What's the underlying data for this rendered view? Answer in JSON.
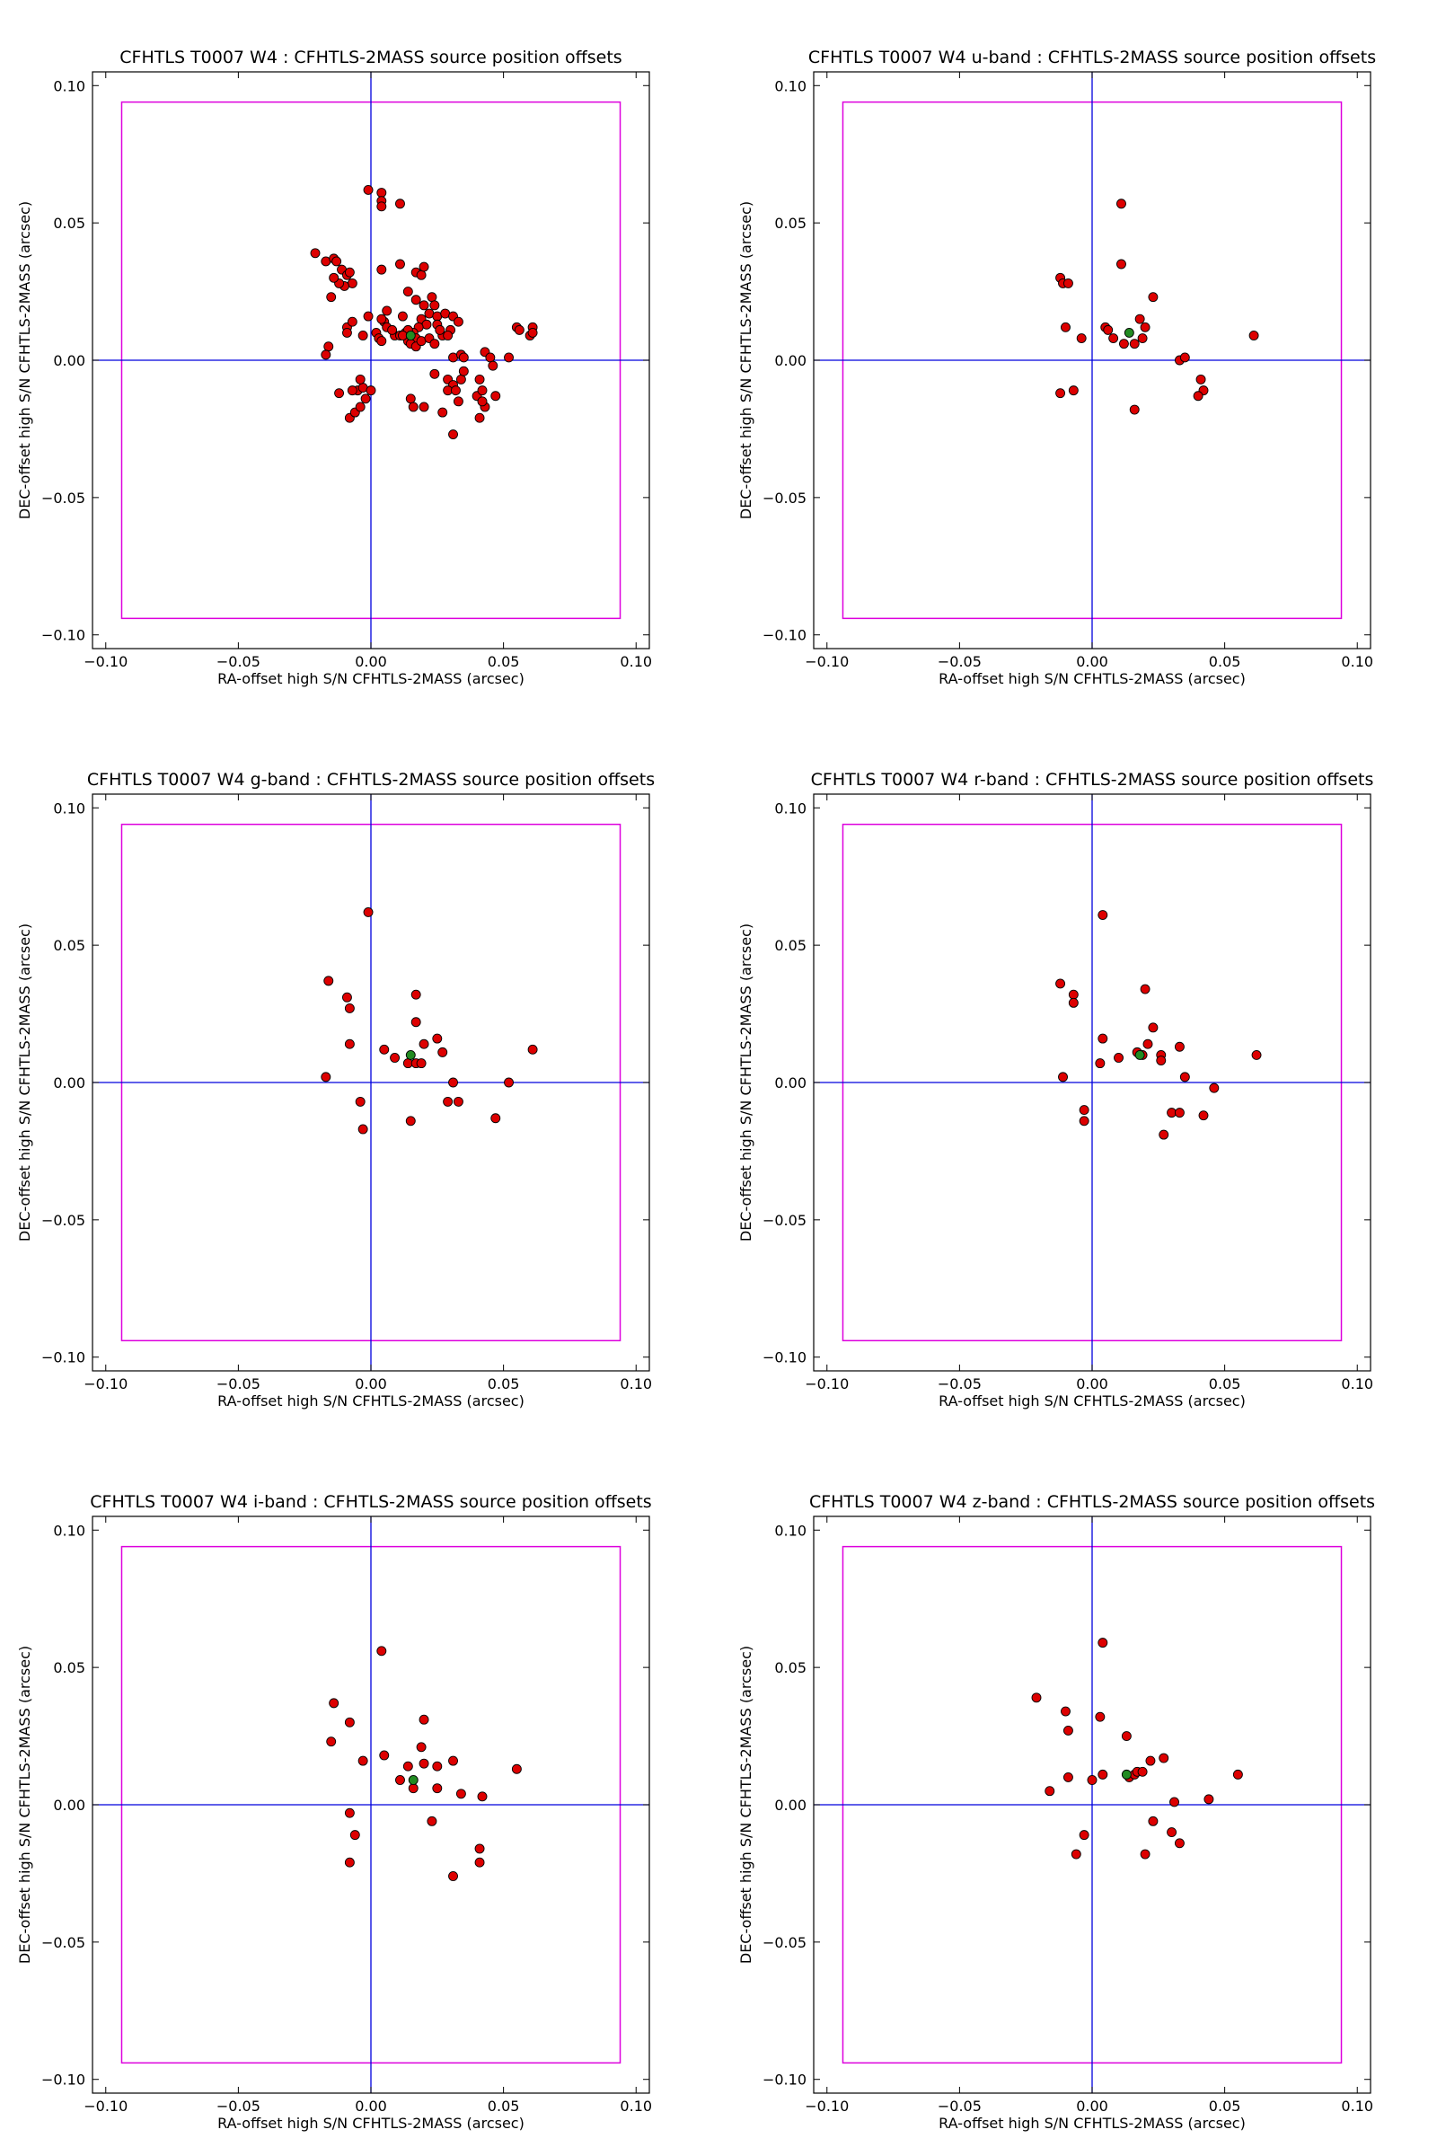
{
  "figure": {
    "background_color": "#ffffff",
    "styles": {
      "point_fill": "#dd0000",
      "point_stroke": "#000000",
      "mean_point_fill": "#228b22",
      "crosshair_color": "#0000dd",
      "box_color": "#dd00dd",
      "frame_color": "#000000"
    }
  },
  "chart_data": [
    {
      "type": "scatter",
      "title": "CFHTLS T0007 W4 : CFHTLS-2MASS source position offsets",
      "xlabel": "RA-offset high S/N CFHTLS-2MASS (arcsec)",
      "ylabel": "DEC-offset high S/N CFHTLS-2MASS (arcsec)",
      "xlim": [
        -0.105,
        0.105
      ],
      "ylim": [
        -0.105,
        0.105
      ],
      "xticks": [
        -0.1,
        -0.05,
        0.0,
        0.05,
        0.1
      ],
      "yticks": [
        -0.1,
        -0.05,
        0.0,
        0.05,
        0.1
      ],
      "xtick_labels": [
        "−0.10",
        "−0.05",
        "0.00",
        "0.05",
        "0.10"
      ],
      "ytick_labels": [
        "−0.10",
        "−0.05",
        "0.00",
        "0.05",
        "0.10"
      ],
      "box_limits": [
        -0.094,
        0.094
      ],
      "crosshair": [
        0,
        0
      ],
      "grid": false,
      "points": [
        [
          -0.021,
          0.039
        ],
        [
          -0.017,
          0.036
        ],
        [
          -0.014,
          0.037
        ],
        [
          -0.013,
          0.036
        ],
        [
          -0.011,
          0.033
        ],
        [
          -0.009,
          0.031
        ],
        [
          -0.008,
          0.032
        ],
        [
          -0.007,
          0.028
        ],
        [
          -0.01,
          0.027
        ],
        [
          -0.012,
          0.028
        ],
        [
          -0.014,
          0.03
        ],
        [
          -0.015,
          0.023
        ],
        [
          -0.009,
          0.012
        ],
        [
          -0.007,
          0.014
        ],
        [
          -0.009,
          0.01
        ],
        [
          -0.003,
          0.009
        ],
        [
          -0.001,
          0.016
        ],
        [
          -0.016,
          0.005
        ],
        [
          -0.017,
          0.002
        ],
        [
          -0.012,
          -0.012
        ],
        [
          -0.008,
          -0.021
        ],
        [
          -0.006,
          -0.019
        ],
        [
          -0.004,
          -0.017
        ],
        [
          -0.005,
          -0.011
        ],
        [
          -0.003,
          -0.01
        ],
        [
          -0.007,
          -0.011
        ],
        [
          -0.004,
          -0.007
        ],
        [
          -0.002,
          -0.014
        ],
        [
          0.0,
          -0.011
        ],
        [
          -0.001,
          0.062
        ],
        [
          0.004,
          0.061
        ],
        [
          0.004,
          0.058
        ],
        [
          0.004,
          0.056
        ],
        [
          0.011,
          0.057
        ],
        [
          0.004,
          0.033
        ],
        [
          0.011,
          0.035
        ],
        [
          0.002,
          0.01
        ],
        [
          0.003,
          0.008
        ],
        [
          0.006,
          0.018
        ],
        [
          0.005,
          0.014
        ],
        [
          0.006,
          0.012
        ],
        [
          0.009,
          0.009
        ],
        [
          0.011,
          0.009
        ],
        [
          0.013,
          0.01
        ],
        [
          0.014,
          0.025
        ],
        [
          0.017,
          0.032
        ],
        [
          0.019,
          0.031
        ],
        [
          0.02,
          0.034
        ],
        [
          0.017,
          0.022
        ],
        [
          0.02,
          0.02
        ],
        [
          0.023,
          0.023
        ],
        [
          0.024,
          0.02
        ],
        [
          0.022,
          0.017
        ],
        [
          0.025,
          0.016
        ],
        [
          0.028,
          0.017
        ],
        [
          0.025,
          0.013
        ],
        [
          0.019,
          0.015
        ],
        [
          0.021,
          0.013
        ],
        [
          0.018,
          0.012
        ],
        [
          0.016,
          0.01
        ],
        [
          0.017,
          0.008
        ],
        [
          0.014,
          0.007
        ],
        [
          0.015,
          0.006
        ],
        [
          0.017,
          0.005
        ],
        [
          0.019,
          0.007
        ],
        [
          0.022,
          0.008
        ],
        [
          0.024,
          0.006
        ],
        [
          0.027,
          0.009
        ],
        [
          0.026,
          0.011
        ],
        [
          0.031,
          0.016
        ],
        [
          0.033,
          0.014
        ],
        [
          0.03,
          0.011
        ],
        [
          0.029,
          0.009
        ],
        [
          0.024,
          -0.005
        ],
        [
          0.027,
          -0.019
        ],
        [
          0.029,
          -0.007
        ],
        [
          0.031,
          -0.009
        ],
        [
          0.029,
          -0.011
        ],
        [
          0.032,
          -0.011
        ],
        [
          0.034,
          -0.007
        ],
        [
          0.035,
          -0.004
        ],
        [
          0.031,
          0.001
        ],
        [
          0.034,
          0.002
        ],
        [
          0.035,
          0.001
        ],
        [
          0.033,
          -0.015
        ],
        [
          0.031,
          -0.027
        ],
        [
          0.041,
          -0.007
        ],
        [
          0.04,
          -0.013
        ],
        [
          0.042,
          -0.011
        ],
        [
          0.041,
          -0.021
        ],
        [
          0.043,
          -0.017
        ],
        [
          0.043,
          0.003
        ],
        [
          0.045,
          0.001
        ],
        [
          0.046,
          -0.002
        ],
        [
          0.047,
          -0.013
        ],
        [
          0.042,
          -0.015
        ],
        [
          0.052,
          0.001
        ],
        [
          0.055,
          0.012
        ],
        [
          0.056,
          0.011
        ],
        [
          0.061,
          0.012
        ],
        [
          0.06,
          0.009
        ],
        [
          0.061,
          0.01
        ],
        [
          0.015,
          -0.014
        ],
        [
          0.016,
          -0.017
        ],
        [
          0.02,
          -0.017
        ],
        [
          0.014,
          0.011
        ],
        [
          0.012,
          0.009
        ],
        [
          0.008,
          0.011
        ],
        [
          0.004,
          0.007
        ],
        [
          0.012,
          0.016
        ],
        [
          0.004,
          0.015
        ]
      ],
      "mean_point": [
        0.015,
        0.009
      ]
    },
    {
      "type": "scatter",
      "title": "CFHTLS T0007 W4 u-band : CFHTLS-2MASS source position offsets",
      "xlabel": "RA-offset high S/N CFHTLS-2MASS (arcsec)",
      "ylabel": "DEC-offset high S/N CFHTLS-2MASS (arcsec)",
      "xlim": [
        -0.105,
        0.105
      ],
      "ylim": [
        -0.105,
        0.105
      ],
      "xticks": [
        -0.1,
        -0.05,
        0.0,
        0.05,
        0.1
      ],
      "yticks": [
        -0.1,
        -0.05,
        0.0,
        0.05,
        0.1
      ],
      "xtick_labels": [
        "−0.10",
        "−0.05",
        "0.00",
        "0.05",
        "0.10"
      ],
      "ytick_labels": [
        "−0.10",
        "−0.05",
        "0.00",
        "0.05",
        "0.10"
      ],
      "box_limits": [
        -0.094,
        0.094
      ],
      "crosshair": [
        0,
        0
      ],
      "grid": false,
      "points": [
        [
          -0.012,
          0.03
        ],
        [
          -0.011,
          0.028
        ],
        [
          -0.009,
          0.028
        ],
        [
          -0.01,
          0.012
        ],
        [
          -0.004,
          0.008
        ],
        [
          -0.012,
          -0.012
        ],
        [
          -0.007,
          -0.011
        ],
        [
          0.011,
          0.057
        ],
        [
          0.011,
          0.035
        ],
        [
          0.005,
          0.012
        ],
        [
          0.006,
          0.011
        ],
        [
          0.008,
          0.008
        ],
        [
          0.012,
          0.006
        ],
        [
          0.016,
          0.006
        ],
        [
          0.018,
          0.015
        ],
        [
          0.019,
          0.008
        ],
        [
          0.02,
          0.012
        ],
        [
          0.023,
          0.023
        ],
        [
          0.016,
          -0.018
        ],
        [
          0.033,
          0.0
        ],
        [
          0.035,
          0.001
        ],
        [
          0.041,
          -0.007
        ],
        [
          0.042,
          -0.011
        ],
        [
          0.04,
          -0.013
        ],
        [
          0.061,
          0.009
        ]
      ],
      "mean_point": [
        0.014,
        0.01
      ]
    },
    {
      "type": "scatter",
      "title": "CFHTLS T0007 W4 g-band : CFHTLS-2MASS source position offsets",
      "xlabel": "RA-offset high S/N CFHTLS-2MASS (arcsec)",
      "ylabel": "DEC-offset high S/N CFHTLS-2MASS (arcsec)",
      "xlim": [
        -0.105,
        0.105
      ],
      "ylim": [
        -0.105,
        0.105
      ],
      "xticks": [
        -0.1,
        -0.05,
        0.0,
        0.05,
        0.1
      ],
      "yticks": [
        -0.1,
        -0.05,
        0.0,
        0.05,
        0.1
      ],
      "xtick_labels": [
        "−0.10",
        "−0.05",
        "0.00",
        "0.05",
        "0.10"
      ],
      "ytick_labels": [
        "−0.10",
        "−0.05",
        "0.00",
        "0.05",
        "0.10"
      ],
      "box_limits": [
        -0.094,
        0.094
      ],
      "crosshair": [
        0,
        0
      ],
      "grid": false,
      "points": [
        [
          -0.001,
          0.062
        ],
        [
          -0.016,
          0.037
        ],
        [
          -0.009,
          0.031
        ],
        [
          -0.008,
          0.027
        ],
        [
          -0.008,
          0.014
        ],
        [
          -0.017,
          0.002
        ],
        [
          -0.004,
          -0.007
        ],
        [
          -0.003,
          -0.017
        ],
        [
          0.017,
          0.032
        ],
        [
          0.017,
          0.022
        ],
        [
          0.025,
          0.016
        ],
        [
          0.02,
          0.014
        ],
        [
          0.027,
          0.011
        ],
        [
          0.005,
          0.012
        ],
        [
          0.009,
          0.009
        ],
        [
          0.014,
          0.007
        ],
        [
          0.017,
          0.007
        ],
        [
          0.019,
          0.007
        ],
        [
          0.031,
          0.0
        ],
        [
          0.029,
          -0.007
        ],
        [
          0.033,
          -0.007
        ],
        [
          0.015,
          -0.014
        ],
        [
          0.047,
          -0.013
        ],
        [
          0.052,
          0.0
        ],
        [
          0.061,
          0.012
        ]
      ],
      "mean_point": [
        0.015,
        0.01
      ]
    },
    {
      "type": "scatter",
      "title": "CFHTLS T0007 W4 r-band : CFHTLS-2MASS source position offsets",
      "xlabel": "RA-offset high S/N CFHTLS-2MASS (arcsec)",
      "ylabel": "DEC-offset high S/N CFHTLS-2MASS (arcsec)",
      "xlim": [
        -0.105,
        0.105
      ],
      "ylim": [
        -0.105,
        0.105
      ],
      "xticks": [
        -0.1,
        -0.05,
        0.0,
        0.05,
        0.1
      ],
      "yticks": [
        -0.1,
        -0.05,
        0.0,
        0.05,
        0.1
      ],
      "xtick_labels": [
        "−0.10",
        "−0.05",
        "0.00",
        "0.05",
        "0.10"
      ],
      "ytick_labels": [
        "−0.10",
        "−0.05",
        "0.00",
        "0.05",
        "0.10"
      ],
      "box_limits": [
        -0.094,
        0.094
      ],
      "crosshair": [
        0,
        0
      ],
      "grid": false,
      "points": [
        [
          0.004,
          0.061
        ],
        [
          -0.012,
          0.036
        ],
        [
          -0.007,
          0.032
        ],
        [
          -0.007,
          0.029
        ],
        [
          0.004,
          0.016
        ],
        [
          0.003,
          0.007
        ],
        [
          0.01,
          0.009
        ],
        [
          -0.011,
          0.002
        ],
        [
          -0.003,
          -0.01
        ],
        [
          -0.003,
          -0.014
        ],
        [
          0.02,
          0.034
        ],
        [
          0.023,
          0.02
        ],
        [
          0.021,
          0.014
        ],
        [
          0.017,
          0.011
        ],
        [
          0.019,
          0.01
        ],
        [
          0.026,
          0.01
        ],
        [
          0.026,
          0.008
        ],
        [
          0.033,
          0.013
        ],
        [
          0.035,
          0.002
        ],
        [
          0.03,
          -0.011
        ],
        [
          0.033,
          -0.011
        ],
        [
          0.027,
          -0.019
        ],
        [
          0.042,
          -0.012
        ],
        [
          0.046,
          -0.002
        ],
        [
          0.062,
          0.01
        ]
      ],
      "mean_point": [
        0.018,
        0.01
      ]
    },
    {
      "type": "scatter",
      "title": "CFHTLS T0007 W4 i-band : CFHTLS-2MASS source position offsets",
      "xlabel": "RA-offset high S/N CFHTLS-2MASS (arcsec)",
      "ylabel": "DEC-offset high S/N CFHTLS-2MASS (arcsec)",
      "xlim": [
        -0.105,
        0.105
      ],
      "ylim": [
        -0.105,
        0.105
      ],
      "xticks": [
        -0.1,
        -0.05,
        0.0,
        0.05,
        0.1
      ],
      "yticks": [
        -0.1,
        -0.05,
        0.0,
        0.05,
        0.1
      ],
      "xtick_labels": [
        "−0.10",
        "−0.05",
        "0.00",
        "0.05",
        "0.10"
      ],
      "ytick_labels": [
        "−0.10",
        "−0.05",
        "0.00",
        "0.05",
        "0.10"
      ],
      "box_limits": [
        -0.094,
        0.094
      ],
      "crosshair": [
        0,
        0
      ],
      "grid": false,
      "points": [
        [
          0.004,
          0.056
        ],
        [
          -0.014,
          0.037
        ],
        [
          -0.008,
          0.03
        ],
        [
          -0.015,
          0.023
        ],
        [
          -0.003,
          0.016
        ],
        [
          0.005,
          0.018
        ],
        [
          0.011,
          0.009
        ],
        [
          0.014,
          0.014
        ],
        [
          0.016,
          0.006
        ],
        [
          0.019,
          0.021
        ],
        [
          0.02,
          0.031
        ],
        [
          0.02,
          0.015
        ],
        [
          0.025,
          0.014
        ],
        [
          0.025,
          0.006
        ],
        [
          0.031,
          0.016
        ],
        [
          0.034,
          0.004
        ],
        [
          0.042,
          0.003
        ],
        [
          0.055,
          0.013
        ],
        [
          -0.008,
          -0.003
        ],
        [
          -0.006,
          -0.011
        ],
        [
          -0.008,
          -0.021
        ],
        [
          0.023,
          -0.006
        ],
        [
          0.031,
          -0.026
        ],
        [
          0.041,
          -0.016
        ],
        [
          0.041,
          -0.021
        ]
      ],
      "mean_point": [
        0.016,
        0.009
      ]
    },
    {
      "type": "scatter",
      "title": "CFHTLS T0007 W4 z-band : CFHTLS-2MASS source position offsets",
      "xlabel": "RA-offset high S/N CFHTLS-2MASS (arcsec)",
      "ylabel": "DEC-offset high S/N CFHTLS-2MASS (arcsec)",
      "xlim": [
        -0.105,
        0.105
      ],
      "ylim": [
        -0.105,
        0.105
      ],
      "xticks": [
        -0.1,
        -0.05,
        0.0,
        0.05,
        0.1
      ],
      "yticks": [
        -0.1,
        -0.05,
        0.0,
        0.05,
        0.1
      ],
      "xtick_labels": [
        "−0.10",
        "−0.05",
        "0.00",
        "0.05",
        "0.10"
      ],
      "ytick_labels": [
        "−0.10",
        "−0.05",
        "0.00",
        "0.05",
        "0.10"
      ],
      "box_limits": [
        -0.094,
        0.094
      ],
      "crosshair": [
        0,
        0
      ],
      "grid": false,
      "points": [
        [
          0.004,
          0.059
        ],
        [
          -0.021,
          0.039
        ],
        [
          -0.01,
          0.034
        ],
        [
          -0.009,
          0.027
        ],
        [
          0.003,
          0.032
        ],
        [
          0.013,
          0.025
        ],
        [
          -0.009,
          0.01
        ],
        [
          -0.016,
          0.005
        ],
        [
          0.0,
          0.009
        ],
        [
          0.004,
          0.011
        ],
        [
          0.014,
          0.01
        ],
        [
          0.016,
          0.011
        ],
        [
          0.017,
          0.012
        ],
        [
          0.019,
          0.012
        ],
        [
          0.022,
          0.016
        ],
        [
          0.027,
          0.017
        ],
        [
          0.031,
          0.001
        ],
        [
          0.044,
          0.002
        ],
        [
          0.055,
          0.011
        ],
        [
          -0.003,
          -0.011
        ],
        [
          -0.006,
          -0.018
        ],
        [
          0.023,
          -0.006
        ],
        [
          0.02,
          -0.018
        ],
        [
          0.03,
          -0.01
        ],
        [
          0.033,
          -0.014
        ]
      ],
      "mean_point": [
        0.013,
        0.011
      ]
    }
  ]
}
